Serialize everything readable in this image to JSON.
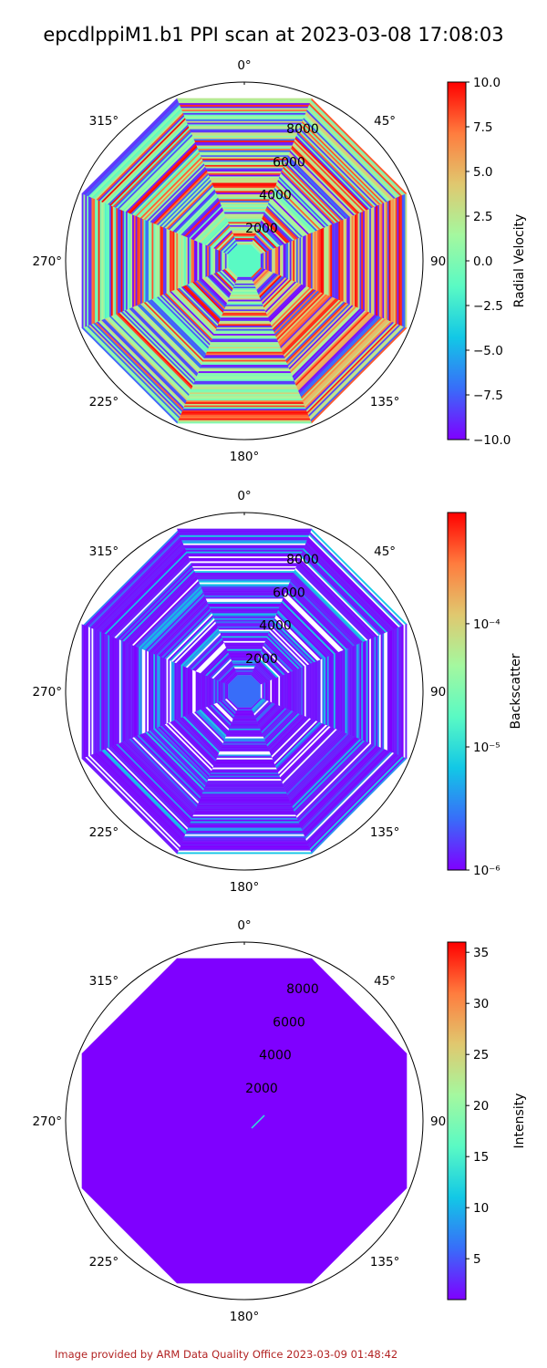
{
  "title": "epcdlppiM1.b1 PPI scan at 2023-03-08 17:08:03",
  "credit": "Image provided by ARM Data Quality Office 2023-03-09 01:48:42",
  "colors": {
    "colormap": [
      "#7f00ff",
      "#386df9",
      "#12c8e6",
      "#5afac4",
      "#a4f89f",
      "#e0c86f",
      "#ff7c3e",
      "#ff0000"
    ],
    "outline": "#000000",
    "credit": "#b22222"
  },
  "chart_data": [
    {
      "type": "polar",
      "angular_ticks": [
        "0°",
        "45°",
        "90°",
        "135°",
        "180°",
        "225°",
        "270°",
        "315°"
      ],
      "angular_direction": "clockwise",
      "radial_ticks": [
        "2000",
        "4000",
        "6000",
        "8000"
      ],
      "rlim": [
        0,
        10000
      ],
      "colorbar": {
        "label": "Radial Velocity",
        "scale": "linear",
        "range": [
          -10,
          10
        ],
        "ticks": [
          "10.0",
          "7.5",
          "5.0",
          "2.5",
          "0.0",
          "−2.5",
          "−5.0",
          "−7.5",
          "−10.0"
        ]
      },
      "pattern": "velocity"
    },
    {
      "type": "polar",
      "angular_ticks": [
        "0°",
        "45°",
        "90°",
        "135°",
        "180°",
        "225°",
        "270°",
        "315°"
      ],
      "angular_direction": "clockwise",
      "radial_ticks": [
        "2000",
        "4000",
        "6000",
        "8000"
      ],
      "rlim": [
        0,
        10000
      ],
      "colorbar": {
        "label": "Backscatter",
        "scale": "log",
        "range": [
          1e-06,
          0.0008
        ],
        "ticks": [
          "10⁻⁴",
          "10⁻⁵",
          "10⁻⁶"
        ],
        "tick_values": [
          0.0001,
          1e-05,
          1e-06
        ]
      },
      "pattern": "backscatter"
    },
    {
      "type": "polar",
      "angular_ticks": [
        "0°",
        "45°",
        "90°",
        "135°",
        "180°",
        "225°",
        "270°",
        "315°"
      ],
      "angular_direction": "clockwise",
      "radial_ticks": [
        "2000",
        "4000",
        "6000",
        "8000"
      ],
      "rlim": [
        0,
        10000
      ],
      "colorbar": {
        "label": "Intensity",
        "scale": "linear",
        "range": [
          1,
          36
        ],
        "ticks": [
          "35",
          "30",
          "25",
          "20",
          "15",
          "10",
          "5"
        ],
        "tick_values": [
          35,
          30,
          25,
          20,
          15,
          10,
          5
        ]
      },
      "pattern": "intensity"
    }
  ]
}
